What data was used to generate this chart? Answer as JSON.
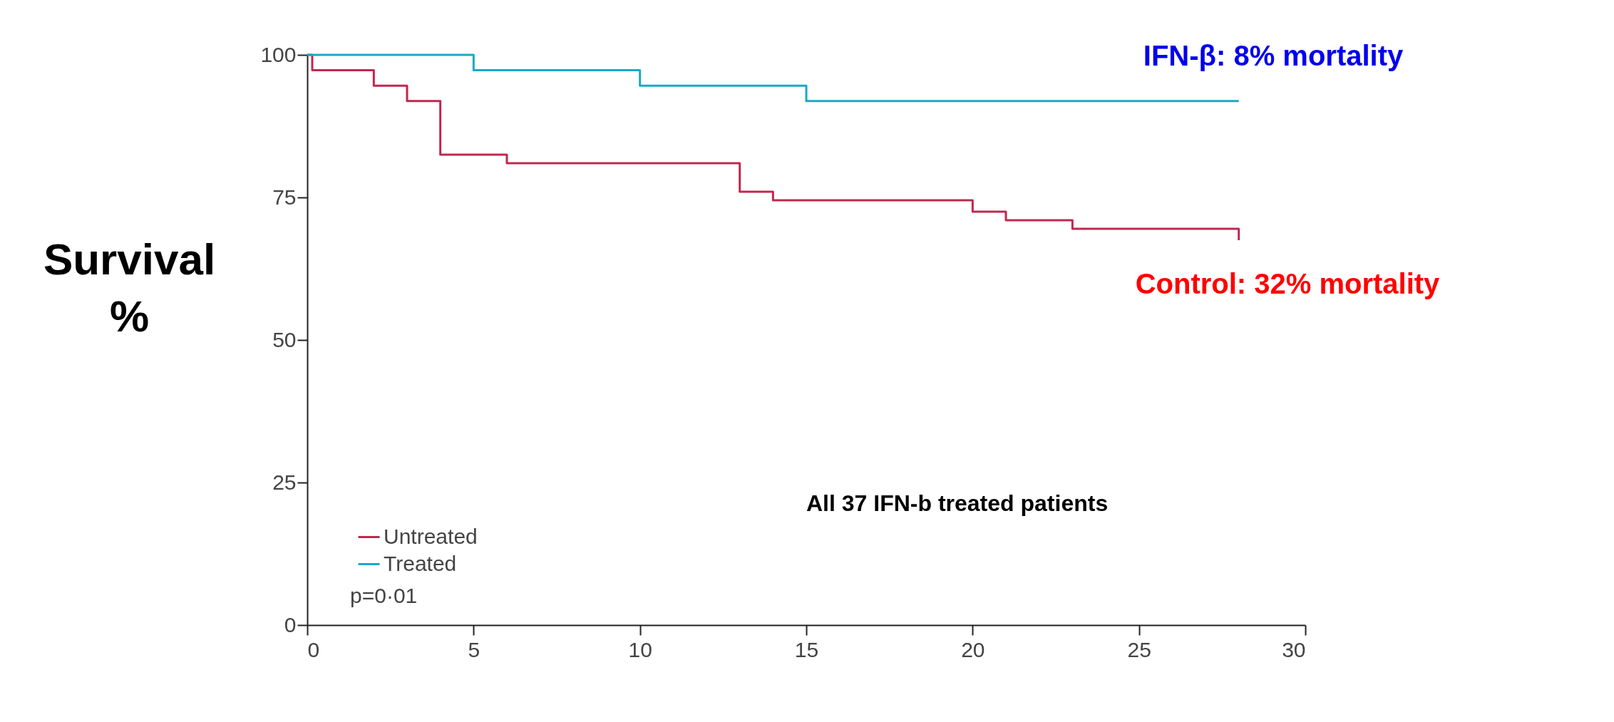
{
  "chart_data": {
    "type": "step",
    "ylabel": "Survival %",
    "xlim": [
      0,
      30
    ],
    "xticks": [
      0,
      5,
      10,
      15,
      20,
      25,
      30
    ],
    "ylim": [
      0,
      100
    ],
    "yticks": [
      0,
      25,
      50,
      75,
      100
    ],
    "series": [
      {
        "name": "Untreated",
        "color": "#c0284f",
        "x": [
          0,
          0.15,
          2,
          3,
          4,
          6,
          13,
          14,
          20,
          21,
          23,
          28
        ],
        "values": [
          100,
          97.3,
          94.6,
          91.9,
          82.5,
          81,
          76,
          74.5,
          72.5,
          71,
          69.5,
          67.5
        ]
      },
      {
        "name": "Treated",
        "color": "#1ba8c8",
        "x": [
          0,
          5,
          10,
          15,
          28
        ],
        "values": [
          100,
          97.3,
          94.6,
          91.9,
          91.9
        ]
      }
    ],
    "legend": "bottom left",
    "grid": false,
    "annotations": [
      "IFN-β: 8% mortality",
      "Control: 32% mortality",
      "All 37 IFN-b treated patients",
      "p=0·01"
    ]
  }
}
